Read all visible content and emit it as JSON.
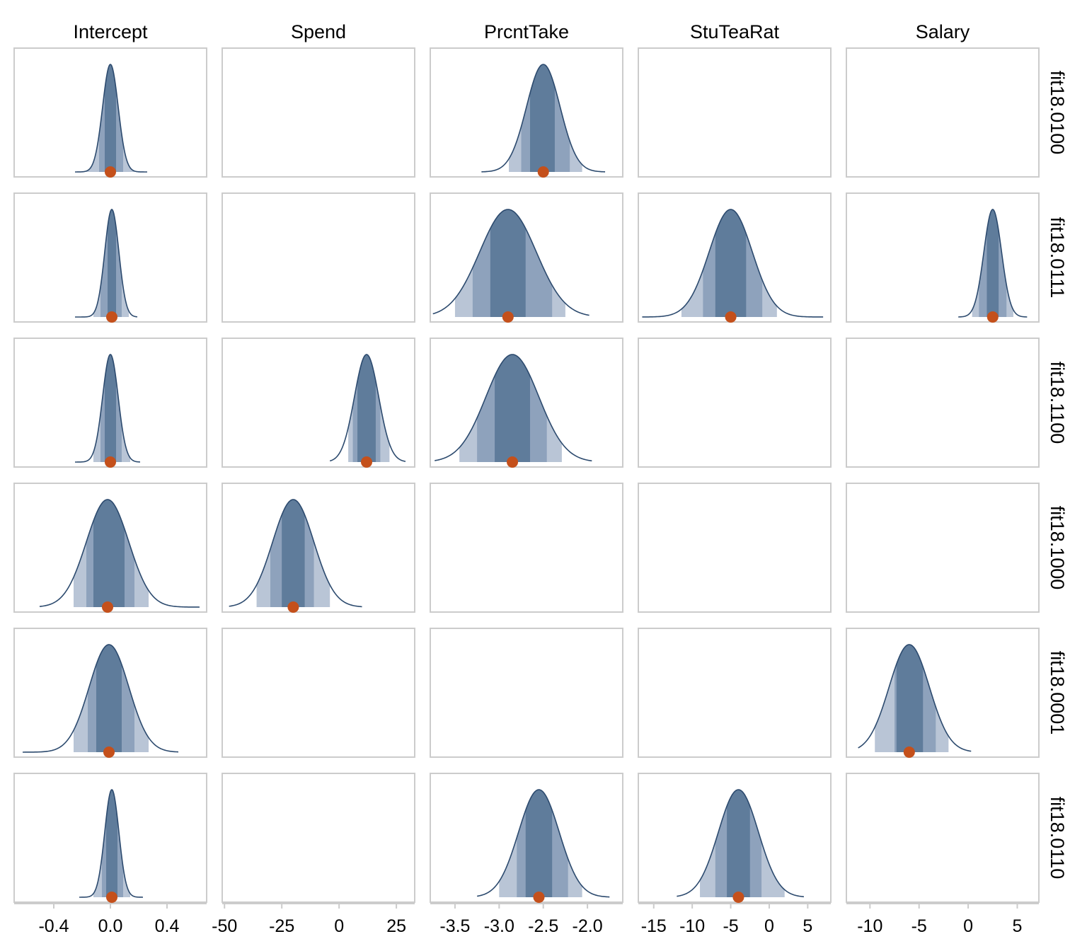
{
  "chart_data": {
    "type": "area",
    "columns": [
      "Intercept",
      "Spend",
      "PrcntTake",
      "StuTeaRat",
      "Salary"
    ],
    "rows": [
      "fit18.0100",
      "fit18.0111",
      "fit18.1100",
      "fit18.1000",
      "fit18.0001",
      "fit18.0110"
    ],
    "x_axes": [
      {
        "xlim": [
          -0.68,
          0.68
        ],
        "ticks": [
          -0.4,
          0.0,
          0.4
        ],
        "tick_labels": [
          "-0.4",
          "0.0",
          "0.4"
        ]
      },
      {
        "xlim": [
          -51,
          33
        ],
        "ticks": [
          -50,
          -25,
          0,
          25
        ],
        "tick_labels": [
          "-50",
          "-25",
          "0",
          "25"
        ]
      },
      {
        "xlim": [
          -3.78,
          -1.6
        ],
        "ticks": [
          -3.5,
          -3.0,
          -2.5,
          -2.0
        ],
        "tick_labels": [
          "-3.5",
          "-3.0",
          "-2.5",
          "-2.0"
        ]
      },
      {
        "xlim": [
          -17,
          8
        ],
        "ticks": [
          -15,
          -10,
          -5,
          0,
          5
        ],
        "tick_labels": [
          "-15",
          "-10",
          "-5",
          "0",
          "5"
        ]
      },
      {
        "xlim": [
          -12.4,
          7.2
        ],
        "ticks": [
          -10,
          -5,
          0,
          5
        ],
        "tick_labels": [
          "-10",
          "-5",
          "0",
          "5"
        ]
      }
    ],
    "posteriors": [
      {
        "row": "fit18.0100",
        "column": "Intercept",
        "median": 0.0,
        "sd": 0.055,
        "range": [
          -0.25,
          0.26
        ],
        "ci50": [
          -0.04,
          0.04
        ],
        "ci80": [
          -0.08,
          0.09
        ],
        "ci95": [
          -0.17,
          0.17
        ]
      },
      {
        "row": "fit18.0100",
        "column": "PrcntTake",
        "median": -2.5,
        "sd": 0.19,
        "range": [
          -3.2,
          -1.8
        ],
        "ci50": [
          -2.65,
          -2.37
        ],
        "ci80": [
          -2.75,
          -2.2
        ],
        "ci95": [
          -2.89,
          -2.06
        ]
      },
      {
        "row": "fit18.0111",
        "column": "Intercept",
        "median": 0.01,
        "sd": 0.05,
        "range": [
          -0.25,
          0.19
        ],
        "ci50": [
          -0.02,
          0.04
        ],
        "ci80": [
          -0.07,
          0.08
        ],
        "ci95": [
          -0.12,
          0.13
        ]
      },
      {
        "row": "fit18.0111",
        "column": "PrcntTake",
        "median": -2.9,
        "sd": 0.32,
        "range": [
          -3.75,
          -1.98
        ],
        "ci50": [
          -3.1,
          -2.7
        ],
        "ci80": [
          -3.3,
          -2.4
        ],
        "ci95": [
          -3.5,
          -2.25
        ]
      },
      {
        "row": "fit18.0111",
        "column": "StuTeaRat",
        "median": -5.0,
        "sd": 2.8,
        "range": [
          -16.5,
          7.0
        ],
        "ci50": [
          -7.0,
          -3.0
        ],
        "ci80": [
          -8.6,
          -0.9
        ],
        "ci95": [
          -11.4,
          1.0
        ]
      },
      {
        "row": "fit18.0111",
        "column": "Salary",
        "median": 2.5,
        "sd": 0.9,
        "range": [
          -1.0,
          6.0
        ],
        "ci50": [
          1.9,
          3.1
        ],
        "ci80": [
          1.1,
          3.9
        ],
        "ci95": [
          0.4,
          4.6
        ]
      },
      {
        "row": "fit18.1100",
        "column": "Intercept",
        "median": 0.0,
        "sd": 0.055,
        "range": [
          -0.25,
          0.21
        ],
        "ci50": [
          -0.04,
          0.04
        ],
        "ci80": [
          -0.07,
          0.08
        ],
        "ci95": [
          -0.12,
          0.14
        ]
      },
      {
        "row": "fit18.1100",
        "column": "Spend",
        "median": 12.0,
        "sd": 5.3,
        "range": [
          -4.0,
          29.0
        ],
        "ci50": [
          8.0,
          16.0
        ],
        "ci80": [
          6.0,
          18.0
        ],
        "ci95": [
          4.0,
          22.0
        ]
      },
      {
        "row": "fit18.1100",
        "column": "PrcntTake",
        "median": -2.85,
        "sd": 0.3,
        "range": [
          -3.73,
          -1.95
        ],
        "ci50": [
          -3.05,
          -2.65
        ],
        "ci80": [
          -3.25,
          -2.46
        ],
        "ci95": [
          -3.45,
          -2.29
        ]
      },
      {
        "row": "fit18.1000",
        "column": "Intercept",
        "median": -0.02,
        "sd": 0.15,
        "range": [
          -0.5,
          0.63
        ],
        "ci50": [
          -0.12,
          0.1
        ],
        "ci80": [
          -0.17,
          0.17
        ],
        "ci95": [
          -0.26,
          0.27
        ]
      },
      {
        "row": "fit18.1000",
        "column": "Spend",
        "median": -20.0,
        "sd": 9.0,
        "range": [
          -48.0,
          10.0
        ],
        "ci50": [
          -25.0,
          -15.0
        ],
        "ci80": [
          -30.0,
          -11.0
        ],
        "ci95": [
          -36.0,
          -4.0
        ]
      },
      {
        "row": "fit18.0001",
        "column": "Intercept",
        "median": -0.01,
        "sd": 0.14,
        "range": [
          -0.62,
          0.48
        ],
        "ci50": [
          -0.1,
          0.08
        ],
        "ci80": [
          -0.16,
          0.17
        ],
        "ci95": [
          -0.26,
          0.27
        ]
      },
      {
        "row": "fit18.0001",
        "column": "Salary",
        "median": -6.0,
        "sd": 2.05,
        "range": [
          -11.2,
          0.3
        ],
        "ci50": [
          -7.3,
          -4.6
        ],
        "ci80": [
          -7.5,
          -3.3
        ],
        "ci95": [
          -9.5,
          -2.0
        ]
      },
      {
        "row": "fit18.0110",
        "column": "Intercept",
        "median": 0.01,
        "sd": 0.05,
        "range": [
          -0.22,
          0.23
        ],
        "ci50": [
          -0.03,
          0.05
        ],
        "ci80": [
          -0.06,
          0.09
        ],
        "ci95": [
          -0.12,
          0.14
        ]
      },
      {
        "row": "fit18.0110",
        "column": "PrcntTake",
        "median": -2.55,
        "sd": 0.23,
        "range": [
          -3.25,
          -1.75
        ],
        "ci50": [
          -2.7,
          -2.4
        ],
        "ci80": [
          -2.8,
          -2.22
        ],
        "ci95": [
          -3.0,
          -2.06
        ]
      },
      {
        "row": "fit18.0110",
        "column": "StuTeaRat",
        "median": -4.0,
        "sd": 2.6,
        "range": [
          -12.0,
          4.5
        ],
        "ci50": [
          -5.5,
          -2.5
        ],
        "ci80": [
          -7.0,
          -1.0
        ],
        "ci95": [
          -9.0,
          2.0
        ]
      }
    ],
    "colors": {
      "ci50": "#5f7c9b",
      "ci80": "#8ea2bc",
      "ci95": "#b9c5d6",
      "outline": "#2c4a6e",
      "median": "#c4501b",
      "frame": "#cccccc"
    }
  }
}
